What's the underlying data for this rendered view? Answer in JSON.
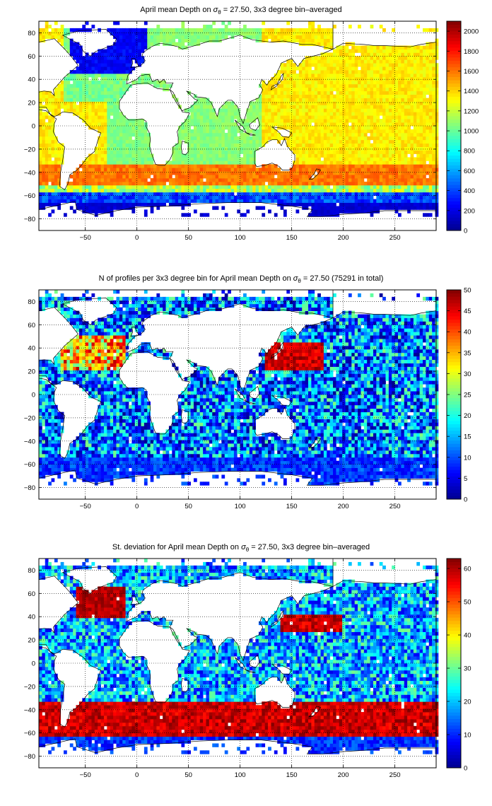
{
  "colormap": [
    "#00008f",
    "#0000ff",
    "#0080ff",
    "#00ffff",
    "#80ff80",
    "#ffff00",
    "#ff8000",
    "#ff0000",
    "#800000"
  ],
  "land_color": "#ffffff",
  "coast_color": "#000000",
  "chart_data": [
    {
      "type": "heatmap",
      "title_pre": "April mean Depth on ",
      "sigma": "σ",
      "sub": "θ",
      "title_post": " = 27.50, 3x3 degree bin–averaged",
      "xlim": [
        -95,
        290
      ],
      "ylim": [
        -90,
        90
      ],
      "xticks": [
        -50,
        0,
        50,
        100,
        150,
        200,
        250
      ],
      "yticks": [
        -80,
        -60,
        -40,
        -20,
        0,
        20,
        40,
        60,
        80
      ],
      "grid": true,
      "colorbar": {
        "min": 0,
        "max": 2100,
        "ticks": [
          0,
          200,
          400,
          600,
          800,
          1000,
          1200,
          1400,
          1600,
          1800,
          2000
        ]
      }
    },
    {
      "type": "heatmap",
      "title_pre": "N of profiles per 3x3 degree bin for April mean Depth on ",
      "sigma": "σ",
      "sub": "θ",
      "title_post": " = 27.50 (75291 in total)",
      "xlim": [
        -95,
        290
      ],
      "ylim": [
        -90,
        90
      ],
      "xticks": [
        -50,
        0,
        50,
        100,
        150,
        200,
        250
      ],
      "yticks": [
        -80,
        -60,
        -40,
        -20,
        0,
        20,
        40,
        60,
        80
      ],
      "grid": true,
      "colorbar": {
        "min": 0,
        "max": 50,
        "ticks": [
          0,
          5,
          10,
          15,
          20,
          25,
          30,
          35,
          40,
          45,
          50
        ]
      }
    },
    {
      "type": "heatmap",
      "title_pre": "St. deviation for April mean Depth on ",
      "sigma": "σ",
      "sub": "θ",
      "title_post": " = 27.50, 3x3 degree bin–averaged",
      "xlim": [
        -95,
        290
      ],
      "ylim": [
        -90,
        90
      ],
      "xticks": [
        -50,
        0,
        50,
        100,
        150,
        200,
        250
      ],
      "yticks": [
        -80,
        -60,
        -40,
        -20,
        0,
        20,
        40,
        60,
        80
      ],
      "grid": true,
      "colorbar": {
        "min": 0,
        "max": 63,
        "ticks": [
          0,
          10,
          20,
          30,
          40,
          50,
          60
        ]
      }
    }
  ]
}
